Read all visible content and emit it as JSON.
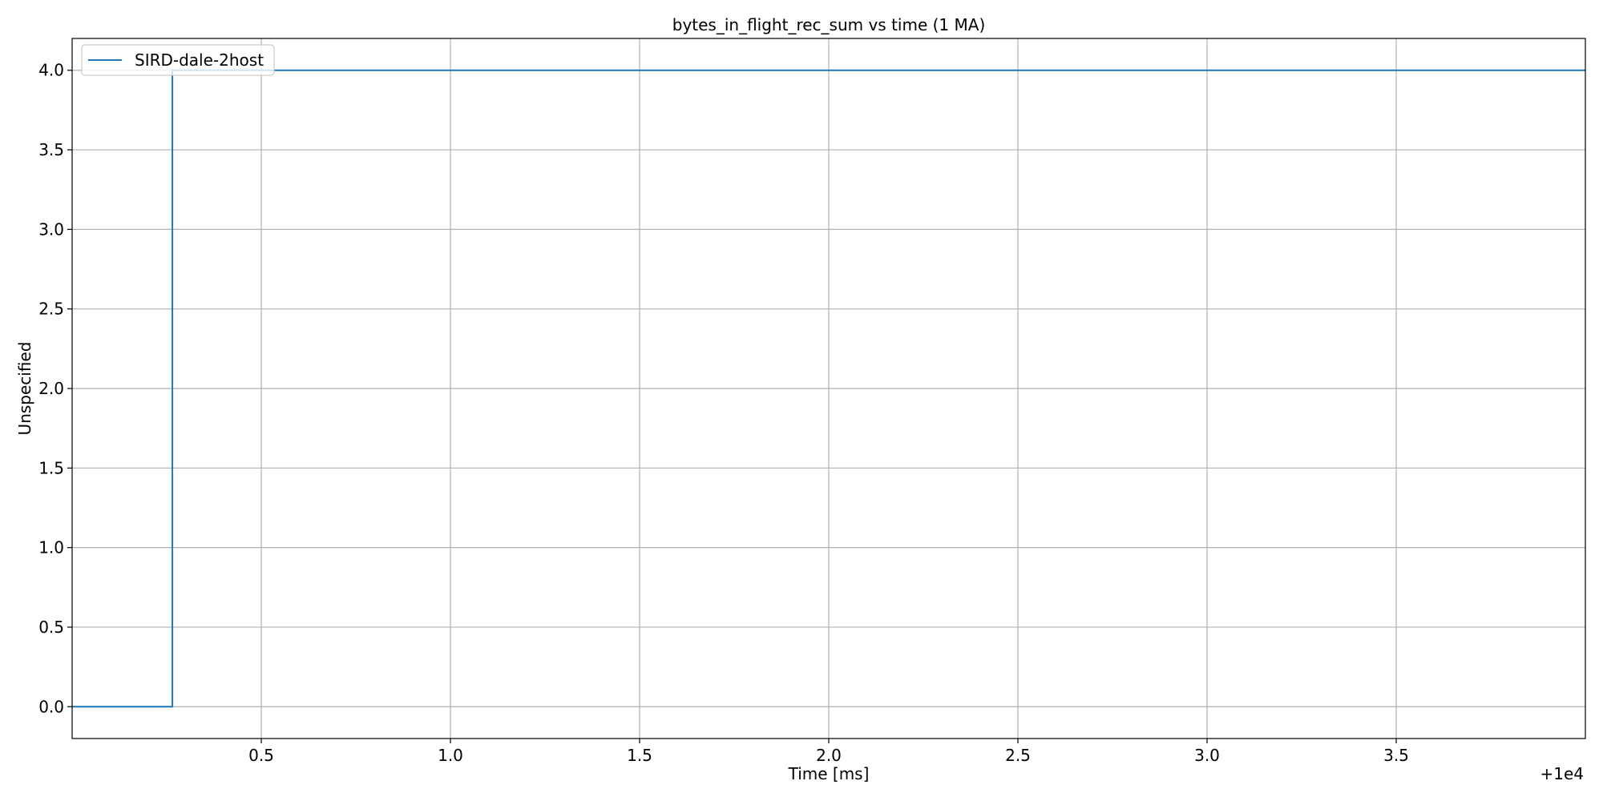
{
  "chart_data": {
    "type": "line",
    "title": "bytes_in_flight_rec_sum vs time (1 MA)",
    "xlabel": "Time [ms]",
    "ylabel": "Unspecified",
    "x_offset_label": "+1e4",
    "xlim": [
      0.0,
      4.0
    ],
    "ylim": [
      -0.2,
      4.2
    ],
    "xticks": [
      0.5,
      1.0,
      1.5,
      2.0,
      2.5,
      3.0,
      3.5
    ],
    "xtick_labels": [
      "0.5",
      "1.0",
      "1.5",
      "2.0",
      "2.5",
      "3.0",
      "3.5"
    ],
    "yticks": [
      0.0,
      0.5,
      1.0,
      1.5,
      2.0,
      2.5,
      3.0,
      3.5,
      4.0
    ],
    "ytick_labels": [
      "0.0",
      "0.5",
      "1.0",
      "1.5",
      "2.0",
      "2.5",
      "3.0",
      "3.5",
      "4.0"
    ],
    "grid": true,
    "legend_position": "upper-left",
    "series": [
      {
        "name": "SIRD-dale-2host",
        "color": "#1f77b4",
        "x": [
          0.0,
          0.265,
          0.265,
          4.0
        ],
        "y": [
          0.0,
          0.0,
          4.0,
          4.0
        ]
      }
    ]
  }
}
